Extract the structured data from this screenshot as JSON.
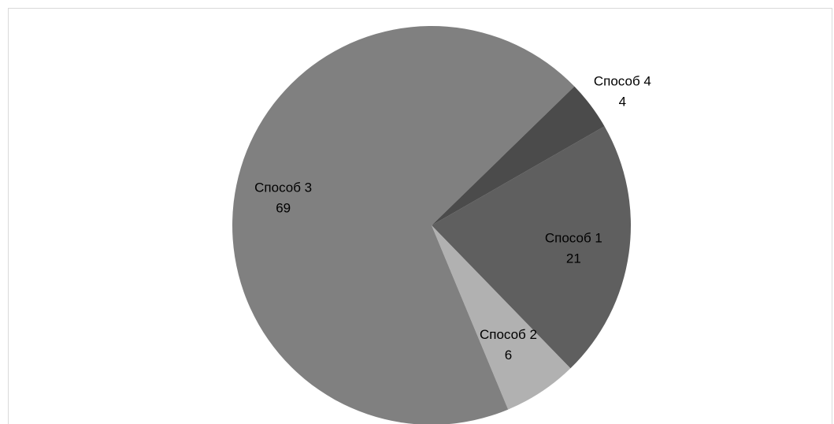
{
  "chart_data": {
    "type": "pie",
    "categories": [
      "Способ 1",
      "Способ 2",
      "Способ 3",
      "Способ 4"
    ],
    "values": [
      21,
      6,
      69,
      4
    ],
    "colors": [
      "#5f5f5f",
      "#b1b1b1",
      "#808080",
      "#4b4b4b"
    ],
    "data_labels": true,
    "legend": "none",
    "title": ""
  }
}
